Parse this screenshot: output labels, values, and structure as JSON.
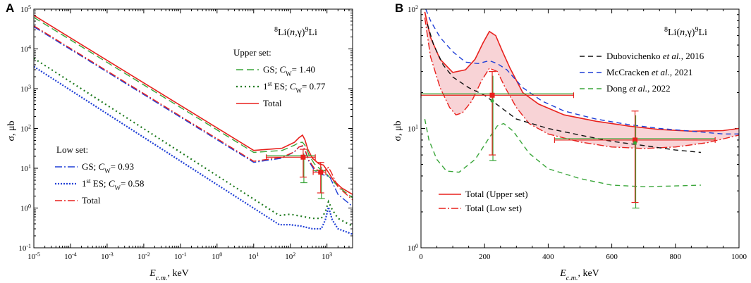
{
  "chart_data": [
    {
      "panel": "A",
      "type": "line",
      "reaction": "8Li(n,γ)9Li",
      "reaction_parts": {
        "mass_a": "8",
        "target": "Li(",
        "n": "n",
        "comma": ",γ)",
        "mass_b": "9",
        "product": "Li"
      },
      "xscale": "log",
      "yscale": "log",
      "xlim": [
        1e-05,
        5000
      ],
      "ylim": [
        0.1,
        100000
      ],
      "xlabel": {
        "main": "E",
        "sub": "c.m.",
        "unit": ", keV"
      },
      "ylabel": "σ, μb",
      "xtick_labels": [
        {
          "v": 1e-05,
          "base": "10",
          "exp": "-5"
        },
        {
          "v": 0.0001,
          "base": "10",
          "exp": "-4"
        },
        {
          "v": 0.001,
          "base": "10",
          "exp": "-3"
        },
        {
          "v": 0.01,
          "base": "10",
          "exp": "-2"
        },
        {
          "v": 0.1,
          "base": "10",
          "exp": "-1"
        },
        {
          "v": 1,
          "base": "10",
          "exp": "0"
        },
        {
          "v": 10,
          "base": "10",
          "exp": "1"
        },
        {
          "v": 100,
          "base": "10",
          "exp": "2"
        },
        {
          "v": 1000,
          "base": "10",
          "exp": "3"
        }
      ],
      "ytick_labels": [
        {
          "v": 0.1,
          "base": "10",
          "exp": "-1"
        },
        {
          "v": 1,
          "base": "10",
          "exp": "0"
        },
        {
          "v": 10,
          "base": "10",
          "exp": "1"
        },
        {
          "v": 100,
          "base": "10",
          "exp": "2"
        },
        {
          "v": 1000,
          "base": "10",
          "exp": "3"
        },
        {
          "v": 10000,
          "base": "10",
          "exp": "4"
        },
        {
          "v": 100000,
          "base": "10",
          "exp": "5"
        }
      ],
      "legend_groups": [
        {
          "title": "Upper set:",
          "entries": [
            {
              "series": "upper_gs",
              "label_main": "GS; ",
              "label_c": "C",
              "label_sub": "W",
              "label_rest": "= 1.40"
            },
            {
              "series": "upper_es",
              "label_pre": "1",
              "label_sup": "st",
              "label_main": " ES; ",
              "label_c": "C",
              "label_sub": "W",
              "label_rest": "= 0.77"
            },
            {
              "series": "upper_total",
              "label_main": "Total"
            }
          ]
        },
        {
          "title": "Low set:",
          "entries": [
            {
              "series": "low_gs",
              "label_main": "GS; ",
              "label_c": "C",
              "label_sub": "W",
              "label_rest": "= 0.93"
            },
            {
              "series": "low_es",
              "label_pre": "1",
              "label_sup": "st",
              "label_main": " ES; ",
              "label_c": "C",
              "label_sub": "W",
              "label_rest": "= 0.58"
            },
            {
              "series": "low_total",
              "label_main": "Total"
            }
          ]
        }
      ],
      "series": [
        {
          "id": "upper_total",
          "color": "#e8211d",
          "dash": "solid",
          "width": 1.6,
          "points": [
            [
              1e-05,
              70000
            ],
            [
              10,
              28
            ],
            [
              60,
              32
            ],
            [
              130,
              45
            ],
            [
              170,
              58
            ],
            [
              215,
              68
            ],
            [
              250,
              52
            ],
            [
              300,
              30
            ],
            [
              400,
              18
            ],
            [
              600,
              13
            ],
            [
              800,
              12
            ],
            [
              1000,
              9
            ],
            [
              1500,
              5
            ],
            [
              2500,
              3.2
            ],
            [
              5000,
              2.2
            ]
          ]
        },
        {
          "id": "upper_gs",
          "color": "#3aa63a",
          "dash": "10,5",
          "width": 1.4,
          "points": [
            [
              1e-05,
              62000
            ],
            [
              10,
              25
            ],
            [
              60,
              28
            ],
            [
              130,
              38
            ],
            [
              170,
              44
            ],
            [
              215,
              45
            ],
            [
              260,
              36
            ],
            [
              320,
              22
            ],
            [
              450,
              13
            ],
            [
              700,
              9
            ],
            [
              1000,
              7
            ],
            [
              2000,
              3.5
            ],
            [
              5000,
              1.8
            ]
          ]
        },
        {
          "id": "upper_es",
          "color": "#1e7a1e",
          "dash": "2,4",
          "width": 2.2,
          "points": [
            [
              1e-05,
              5800
            ],
            [
              50,
              0.65
            ],
            [
              100,
              0.7
            ],
            [
              200,
              0.62
            ],
            [
              400,
              0.55
            ],
            [
              700,
              0.55
            ],
            [
              900,
              0.8
            ],
            [
              1100,
              1.45
            ],
            [
              1400,
              0.9
            ],
            [
              2000,
              0.55
            ],
            [
              5000,
              0.35
            ]
          ]
        },
        {
          "id": "low_gs",
          "color": "#1f3fd6",
          "dash": "10,3,2,3",
          "width": 1.4,
          "points": [
            [
              1e-05,
              36000
            ],
            [
              10,
              14
            ],
            [
              60,
              18
            ],
            [
              130,
              26
            ],
            [
              170,
              34
            ],
            [
              215,
              36
            ],
            [
              260,
              26
            ],
            [
              320,
              15
            ],
            [
              450,
              9
            ],
            [
              700,
              7
            ],
            [
              1000,
              6.5
            ],
            [
              1200,
              6
            ],
            [
              2000,
              2.2
            ],
            [
              5000,
              1.1
            ]
          ]
        },
        {
          "id": "low_es",
          "color": "#1f3fd6",
          "dash": "2,2",
          "width": 2.2,
          "points": [
            [
              1e-05,
              3600
            ],
            [
              50,
              0.38
            ],
            [
              100,
              0.38
            ],
            [
              200,
              0.35
            ],
            [
              400,
              0.3
            ],
            [
              700,
              0.3
            ],
            [
              900,
              0.5
            ],
            [
              1100,
              1.05
            ],
            [
              1400,
              0.5
            ],
            [
              2000,
              0.3
            ],
            [
              5000,
              0.22
            ]
          ]
        },
        {
          "id": "low_total",
          "color": "#e8211d",
          "dash": "10,3,2,3",
          "width": 1.4,
          "points": [
            [
              1e-05,
              38000
            ],
            [
              10,
              15
            ],
            [
              60,
              19
            ],
            [
              130,
              26
            ],
            [
              170,
              34
            ],
            [
              215,
              37
            ],
            [
              260,
              27
            ],
            [
              320,
              16
            ],
            [
              450,
              10
            ],
            [
              700,
              8
            ],
            [
              900,
              9
            ],
            [
              1100,
              10.5
            ],
            [
              1300,
              8
            ],
            [
              2000,
              3.4
            ],
            [
              5000,
              1.6
            ]
          ]
        }
      ],
      "data_points": [
        {
          "x": 224,
          "y": 19,
          "xerr": [
            22,
            480
          ],
          "yerr": [
            6,
            30
          ],
          "color": "#e8211d",
          "cap_color": "#3aa63a"
        },
        {
          "x": 673,
          "y": 8,
          "xerr": [
            420,
            925
          ],
          "yerr": [
            2.4,
            14
          ],
          "color": "#e8211d",
          "cap_color": "#3aa63a"
        }
      ]
    },
    {
      "panel": "B",
      "type": "line",
      "reaction": "8Li(n,γ)9Li",
      "reaction_parts": {
        "mass_a": "8",
        "target": "Li(",
        "n": "n",
        "comma": ",γ)",
        "mass_b": "9",
        "product": "Li"
      },
      "xscale": "linear",
      "yscale": "log",
      "xlim": [
        0,
        1000
      ],
      "ylim": [
        1,
        100
      ],
      "xlabel": {
        "main": "E",
        "sub": "c.m.",
        "unit": ", keV"
      },
      "ylabel": "σ, μb",
      "xtick_labels": [
        {
          "v": 0,
          "text": "0"
        },
        {
          "v": 200,
          "text": "200"
        },
        {
          "v": 400,
          "text": "400"
        },
        {
          "v": 600,
          "text": "600"
        },
        {
          "v": 800,
          "text": "800"
        },
        {
          "v": 1000,
          "text": "1000"
        }
      ],
      "ytick_labels": [
        {
          "v": 1,
          "base": "10",
          "exp": "0"
        },
        {
          "v": 10,
          "base": "10",
          "exp": "1"
        },
        {
          "v": 100,
          "base": "10",
          "exp": "2"
        }
      ],
      "legend_right": [
        {
          "series": "dubovichenko",
          "text_a": "Dubovichenko ",
          "text_i": "et al.",
          "text_b": ", 2016"
        },
        {
          "series": "mccracken",
          "text_a": "McCracken ",
          "text_i": "et al.",
          "text_b": ", 2021"
        },
        {
          "series": "dong",
          "text_a": "Dong ",
          "text_i": "et al.",
          "text_b": ", 2022"
        }
      ],
      "legend_left": [
        {
          "series": "upper_total_b",
          "text": "Total (Upper set)"
        },
        {
          "series": "low_total_b",
          "text": "Total (Low set)"
        }
      ],
      "band_fill": "#f8d3d6",
      "series": [
        {
          "id": "upper_total_b",
          "color": "#e8211d",
          "dash": "solid",
          "width": 1.6,
          "points": [
            [
              12,
              95
            ],
            [
              30,
              58
            ],
            [
              60,
              38
            ],
            [
              100,
              29.5
            ],
            [
              140,
              31
            ],
            [
              170,
              38
            ],
            [
              195,
              52
            ],
            [
              215,
              65
            ],
            [
              235,
              60
            ],
            [
              255,
              45
            ],
            [
              280,
              32
            ],
            [
              320,
              20
            ],
            [
              370,
              16
            ],
            [
              450,
              13
            ],
            [
              550,
              11.5
            ],
            [
              650,
              10.5
            ],
            [
              750,
              9.8
            ],
            [
              850,
              9.5
            ],
            [
              950,
              9.6
            ],
            [
              1000,
              10
            ]
          ]
        },
        {
          "id": "low_total_b",
          "color": "#e8211d",
          "dash": "10,3,2,3",
          "width": 1.4,
          "points": [
            [
              12,
              85
            ],
            [
              30,
              40
            ],
            [
              60,
              22
            ],
            [
              90,
              15
            ],
            [
              110,
              13
            ],
            [
              130,
              13.5
            ],
            [
              160,
              17
            ],
            [
              190,
              25
            ],
            [
              215,
              32
            ],
            [
              240,
              30
            ],
            [
              265,
              22
            ],
            [
              300,
              15
            ],
            [
              340,
              11
            ],
            [
              400,
              9
            ],
            [
              500,
              7.7
            ],
            [
              600,
              7
            ],
            [
              700,
              6.8
            ],
            [
              800,
              7
            ],
            [
              900,
              7.6
            ],
            [
              1000,
              8.8
            ]
          ]
        },
        {
          "id": "dubovichenko",
          "color": "#111111",
          "dash": "7,5",
          "width": 1.4,
          "points": [
            [
              20,
              75
            ],
            [
              40,
              50
            ],
            [
              70,
              34
            ],
            [
              100,
              27
            ],
            [
              150,
              22
            ],
            [
              200,
              19
            ],
            [
              300,
              12
            ],
            [
              400,
              10
            ],
            [
              500,
              8.8
            ],
            [
              600,
              7.8
            ],
            [
              700,
              7.2
            ],
            [
              800,
              6.6
            ],
            [
              880,
              6.3
            ]
          ]
        },
        {
          "id": "mccracken",
          "color": "#1f3fd6",
          "dash": "7,5",
          "width": 1.4,
          "points": [
            [
              15,
              100
            ],
            [
              30,
              80
            ],
            [
              60,
              58
            ],
            [
              100,
              44
            ],
            [
              140,
              36
            ],
            [
              180,
              35
            ],
            [
              215,
              37
            ],
            [
              240,
              35
            ],
            [
              270,
              31
            ],
            [
              320,
              22
            ],
            [
              380,
              17
            ],
            [
              450,
              14
            ],
            [
              550,
              12
            ],
            [
              650,
              10.8
            ],
            [
              750,
              10
            ],
            [
              850,
              9.5
            ],
            [
              950,
              9
            ],
            [
              1000,
              9
            ]
          ]
        },
        {
          "id": "dong",
          "color": "#3aa63a",
          "dash": "7,5",
          "width": 1.4,
          "points": [
            [
              12,
              12
            ],
            [
              25,
              8
            ],
            [
              50,
              5.5
            ],
            [
              80,
              4.4
            ],
            [
              120,
              4.3
            ],
            [
              170,
              5.5
            ],
            [
              210,
              8
            ],
            [
              240,
              10.5
            ],
            [
              260,
              11
            ],
            [
              290,
              9.5
            ],
            [
              340,
              6.2
            ],
            [
              400,
              4.6
            ],
            [
              500,
              3.8
            ],
            [
              600,
              3.35
            ],
            [
              700,
              3.25
            ],
            [
              800,
              3.3
            ],
            [
              880,
              3.35
            ]
          ]
        }
      ],
      "data_points": [
        {
          "x": 224,
          "y": 19,
          "xerr": [
            0,
            480
          ],
          "yerr": [
            6,
            30
          ],
          "color": "#e8211d",
          "cap_color": "#3aa63a",
          "x2": 224,
          "y2": 18
        },
        {
          "x": 673,
          "y": 8,
          "xerr": [
            420,
            925
          ],
          "yerr": [
            2.4,
            14
          ],
          "color": "#e8211d",
          "cap_color": "#3aa63a",
          "x2": 673,
          "y2": 8
        }
      ]
    }
  ],
  "panel_labels": [
    "A",
    "B"
  ]
}
